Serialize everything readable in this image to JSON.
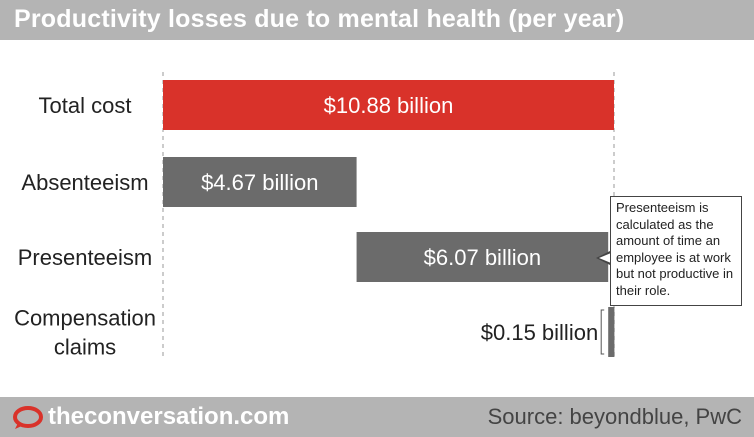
{
  "title": "Productivity losses due to mental health (per year)",
  "chart_data": {
    "type": "bar",
    "orientation": "horizontal-waterfall",
    "categories": [
      "Total cost",
      "Absenteeism",
      "Presenteeism",
      "Compensation claims"
    ],
    "category_lines": [
      [
        "Total cost"
      ],
      [
        "Absenteeism"
      ],
      [
        "Presenteeism"
      ],
      [
        "Compensation",
        "claims"
      ]
    ],
    "values": [
      10.88,
      4.67,
      6.07,
      0.15
    ],
    "starts": [
      0,
      0,
      4.67,
      10.74
    ],
    "value_labels": [
      "$10.88 billion",
      "$4.67 billion",
      "$6.07 billion",
      "$0.15 billion"
    ],
    "unit": "billion",
    "xlim": [
      0,
      10.88
    ],
    "grid": false,
    "colors": [
      "#d9322a",
      "#6b6b6b",
      "#6b6b6b",
      "#6b6b6b"
    ],
    "annotation": "Presenteeism is calculated as the amount of time an employee is at work but not productive in their role."
  },
  "footer": {
    "brand": "theconversation.com",
    "source": "Source: beyondblue, PwC",
    "logo_icon": "speech-bubble-icon",
    "logo_color": "#d9322a"
  }
}
